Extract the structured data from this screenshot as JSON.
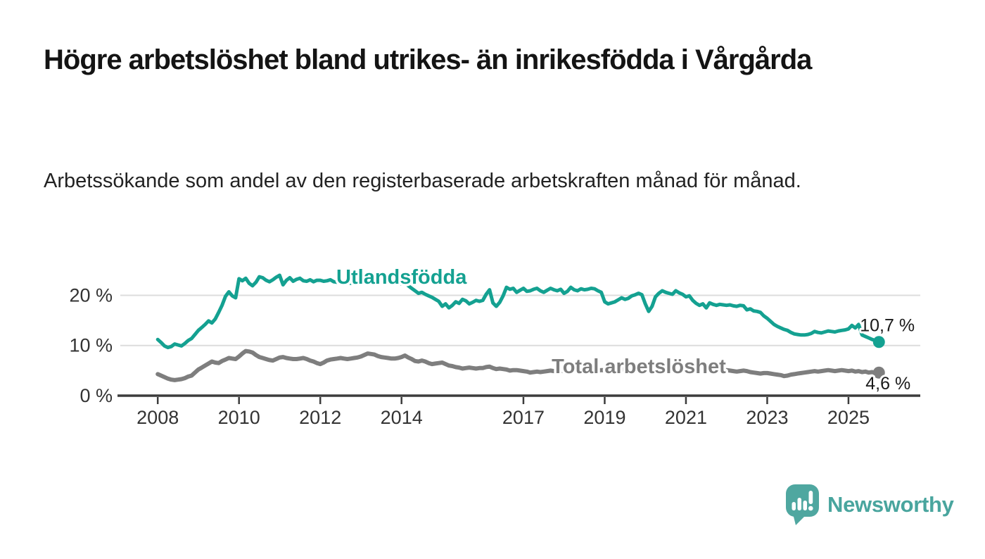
{
  "title": "Högre arbetslöshet bland utrikes- än inrikesfödda i Vårgårda",
  "subtitle": "Arbetssökande som andel av den registerbaserade arbetskraften månad för månad.",
  "branding": {
    "name": "Newsworthy",
    "logo_color": "#4fa7a0",
    "logo_icon": "speech-bubble-bar-chart-exclamation-icon"
  },
  "chart_data": {
    "type": "line",
    "title": "Högre arbetslöshet bland utrikes- än inrikesfödda i Vårgårda",
    "subtitle": "Arbetssökande som andel av den registerbaserade arbetskraften månad för månad.",
    "x_unit": "month",
    "x_start": {
      "year": 2008,
      "month": 1
    },
    "x_end": {
      "year": 2025,
      "month": 10
    },
    "x_tick_years": [
      2008,
      2010,
      2012,
      2014,
      2017,
      2019,
      2021,
      2023,
      2025
    ],
    "y_ticks": [
      {
        "value": 0,
        "label": "0 %"
      },
      {
        "value": 10,
        "label": "10 %"
      },
      {
        "value": 20,
        "label": "20 %"
      }
    ],
    "ylim": [
      0,
      26
    ],
    "grid": "horizontal-only",
    "legend_position": "inline-labels",
    "axis_color": "#3c3c3c",
    "grid_color": "#dcdcdc",
    "tick_label_color": "#333333",
    "end_label_color": "#1a1a1a",
    "series": [
      {
        "name": "Utlandsfödda",
        "color": "#14a191",
        "end_value_label": "10,7 %",
        "last_value": 10.7,
        "label_pos": {
          "year": 2014.0,
          "value": 22.3
        },
        "values": [
          11.2,
          10.6,
          9.9,
          9.6,
          9.8,
          10.3,
          10.1,
          9.9,
          10.4,
          11.0,
          11.4,
          12.2,
          13.0,
          13.6,
          14.2,
          14.9,
          14.5,
          15.3,
          16.6,
          18.0,
          19.8,
          20.7,
          19.9,
          19.5,
          23.3,
          22.9,
          23.4,
          22.4,
          21.9,
          22.6,
          23.7,
          23.5,
          23.0,
          22.7,
          23.1,
          23.6,
          24.0,
          22.1,
          23.0,
          23.5,
          22.8,
          23.2,
          23.4,
          22.9,
          22.8,
          23.1,
          22.7,
          23.0,
          23.0,
          22.8,
          22.9,
          23.1,
          22.7,
          22.6,
          22.9,
          22.5,
          22.7,
          22.4,
          22.6,
          22.7,
          22.6,
          22.8,
          23.0,
          22.8,
          22.5,
          22.4,
          22.6,
          22.3,
          22.5,
          22.2,
          22.3,
          22.4,
          22.3,
          22.6,
          21.9,
          21.4,
          20.9,
          20.4,
          20.6,
          20.2,
          19.9,
          19.6,
          19.2,
          18.8,
          17.8,
          18.3,
          17.5,
          18.0,
          18.7,
          18.4,
          19.2,
          18.9,
          18.3,
          18.6,
          19.0,
          18.8,
          19.0,
          20.2,
          21.1,
          18.5,
          17.8,
          18.6,
          19.9,
          21.6,
          21.2,
          21.4,
          20.6,
          21.0,
          21.4,
          20.8,
          20.9,
          21.2,
          21.4,
          20.9,
          20.6,
          21.0,
          21.4,
          21.1,
          20.9,
          21.2,
          20.4,
          20.8,
          21.6,
          21.1,
          20.9,
          21.3,
          21.1,
          21.2,
          21.4,
          21.3,
          20.9,
          20.6,
          18.7,
          18.3,
          18.5,
          18.7,
          19.1,
          19.5,
          19.2,
          19.4,
          19.9,
          20.1,
          20.4,
          20.1,
          18.3,
          16.8,
          17.8,
          19.7,
          20.4,
          20.9,
          20.6,
          20.4,
          20.2,
          20.9,
          20.5,
          20.2,
          19.7,
          19.9,
          19.0,
          18.4,
          18.0,
          18.3,
          17.5,
          18.5,
          18.2,
          18.0,
          18.2,
          18.1,
          18.0,
          18.1,
          17.9,
          17.8,
          18.0,
          17.9,
          17.1,
          17.3,
          16.9,
          16.8,
          16.6,
          15.9,
          15.4,
          14.8,
          14.2,
          13.8,
          13.5,
          13.2,
          13.0,
          12.6,
          12.3,
          12.2,
          12.1,
          12.1,
          12.2,
          12.4,
          12.8,
          12.6,
          12.5,
          12.7,
          12.9,
          12.8,
          12.7,
          12.9,
          13.0,
          13.1,
          13.3,
          14.0,
          13.5,
          14.2,
          12.1,
          11.8,
          11.5,
          11.2,
          11.0,
          10.7
        ]
      },
      {
        "name": "Total arbetslöshet",
        "color": "#7e7e7e",
        "end_value_label": "4,6 %",
        "last_value": 4.6,
        "label_pos": {
          "year": 2019.84,
          "value": 4.5
        },
        "values": [
          4.3,
          4.0,
          3.7,
          3.4,
          3.2,
          3.1,
          3.2,
          3.3,
          3.5,
          3.8,
          4.0,
          4.6,
          5.2,
          5.6,
          6.0,
          6.4,
          6.8,
          6.6,
          6.5,
          6.9,
          7.2,
          7.5,
          7.4,
          7.3,
          7.8,
          8.4,
          8.9,
          8.8,
          8.6,
          8.1,
          7.7,
          7.5,
          7.3,
          7.1,
          7.0,
          7.3,
          7.6,
          7.7,
          7.5,
          7.4,
          7.3,
          7.3,
          7.4,
          7.5,
          7.3,
          7.0,
          6.8,
          6.5,
          6.3,
          6.6,
          7.0,
          7.2,
          7.3,
          7.4,
          7.5,
          7.4,
          7.3,
          7.4,
          7.5,
          7.6,
          7.8,
          8.1,
          8.4,
          8.3,
          8.2,
          7.9,
          7.7,
          7.6,
          7.5,
          7.4,
          7.4,
          7.5,
          7.7,
          8.0,
          7.6,
          7.3,
          6.9,
          6.8,
          7.0,
          6.8,
          6.5,
          6.3,
          6.4,
          6.5,
          6.6,
          6.3,
          6.0,
          5.9,
          5.7,
          5.6,
          5.4,
          5.5,
          5.6,
          5.5,
          5.4,
          5.5,
          5.5,
          5.7,
          5.8,
          5.5,
          5.3,
          5.4,
          5.3,
          5.2,
          5.0,
          5.1,
          5.1,
          5.0,
          4.9,
          4.8,
          4.6,
          4.7,
          4.8,
          4.7,
          4.8,
          4.9,
          5.0,
          4.9,
          4.8,
          4.9,
          5.0,
          4.9,
          4.8,
          4.9,
          5.0,
          5.1,
          5.0,
          4.9,
          5.0,
          5.1,
          5.0,
          5.1,
          5.1,
          5.0,
          5.1,
          5.2,
          5.1,
          5.2,
          5.3,
          5.2,
          5.3,
          5.2,
          5.1,
          5.2,
          5.2,
          5.1,
          5.3,
          5.6,
          5.7,
          5.6,
          5.5,
          5.4,
          5.3,
          5.4,
          5.3,
          5.2,
          5.2,
          5.1,
          5.0,
          4.9,
          5.0,
          4.9,
          4.8,
          4.9,
          4.8,
          4.9,
          5.0,
          5.1,
          5.1,
          5.0,
          4.9,
          4.8,
          4.9,
          5.0,
          4.9,
          4.7,
          4.6,
          4.5,
          4.4,
          4.5,
          4.5,
          4.4,
          4.3,
          4.2,
          4.1,
          3.9,
          4.0,
          4.2,
          4.3,
          4.4,
          4.5,
          4.6,
          4.7,
          4.8,
          4.9,
          4.8,
          4.9,
          5.0,
          5.1,
          5.0,
          4.9,
          5.0,
          5.1,
          5.0,
          4.9,
          5.0,
          4.8,
          4.9,
          4.7,
          4.8,
          4.6,
          4.7,
          4.5,
          4.6
        ]
      }
    ]
  }
}
